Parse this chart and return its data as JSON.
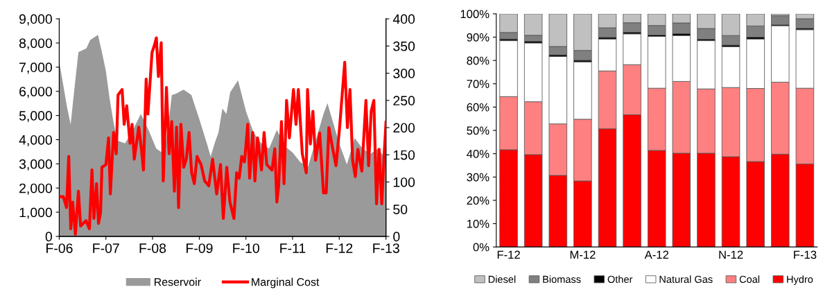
{
  "chart_data": [
    {
      "type": "line",
      "legend": "bottom",
      "grid": false,
      "xlim": [
        "2006-02-01",
        "2013-02-01"
      ],
      "xticks": [
        {
          "value": "2006-02-01",
          "label": "F-06"
        },
        {
          "value": "2007-02-01",
          "label": "F-07"
        },
        {
          "value": "2008-02-01",
          "label": "F-08"
        },
        {
          "value": "2009-02-01",
          "label": "F-09"
        },
        {
          "value": "2010-02-01",
          "label": "F-10"
        },
        {
          "value": "2011-02-01",
          "label": "F-11"
        },
        {
          "value": "2012-02-01",
          "label": "F-12"
        },
        {
          "value": "2013-02-01",
          "label": "F-13"
        }
      ],
      "ylim": [
        0,
        9000
      ],
      "yticks": [
        0,
        {
          "value": 1000,
          "label": "1,000"
        },
        {
          "value": 2000,
          "label": "2,000"
        },
        {
          "value": 3000,
          "label": "3,000"
        },
        {
          "value": 4000,
          "label": "4,000"
        },
        {
          "value": 5000,
          "label": "5,000"
        },
        {
          "value": 6000,
          "label": "6,000"
        },
        {
          "value": 7000,
          "label": "7,000"
        },
        {
          "value": 8000,
          "label": "8,000"
        },
        {
          "value": 9000,
          "label": "9,000"
        }
      ],
      "y2lim": [
        0,
        400
      ],
      "y2ticks": [
        0,
        50,
        100,
        150,
        200,
        250,
        300,
        350,
        400
      ],
      "series": [
        {
          "name": "Reservoir",
          "type": "area",
          "color": "#9a9a9a",
          "x": [
            "2006-02-01",
            "2006-04-01",
            "2006-05-01",
            "2006-06-01",
            "2006-07-01",
            "2006-09-01",
            "2006-10-01",
            "2006-11-01",
            "2006-12-01",
            "2007-01-01",
            "2007-02-01",
            "2007-03-01",
            "2007-04-01",
            "2007-05-01",
            "2007-07-01",
            "2007-09-01",
            "2007-11-01",
            "2008-01-01",
            "2008-03-01",
            "2008-05-01",
            "2008-06-01",
            "2008-07-01",
            "2008-08-01",
            "2008-10-01",
            "2008-12-01",
            "2009-02-01",
            "2009-04-01",
            "2009-05-01",
            "2009-06-01",
            "2009-07-01",
            "2009-08-01",
            "2009-09-01",
            "2009-10-01",
            "2009-12-01",
            "2010-02-01",
            "2010-04-01",
            "2010-06-01",
            "2010-08-01",
            "2010-10-01",
            "2010-12-01",
            "2011-02-01",
            "2011-04-01",
            "2011-06-01",
            "2011-08-01",
            "2011-10-01",
            "2011-11-01",
            "2011-12-01",
            "2012-02-01",
            "2012-04-01",
            "2012-06-01",
            "2012-08-01",
            "2012-10-01",
            "2012-12-01",
            "2013-02-01"
          ],
          "values": [
            7230,
            5400,
            4630,
            6180,
            7620,
            7780,
            8120,
            8230,
            8340,
            7620,
            6840,
            5740,
            4740,
            3960,
            3850,
            4400,
            5070,
            4400,
            3630,
            3410,
            4520,
            5850,
            5900,
            6070,
            5850,
            4850,
            3850,
            3300,
            3850,
            4300,
            5290,
            5070,
            5960,
            6460,
            5180,
            4300,
            3850,
            3630,
            4400,
            3740,
            3470,
            3080,
            2860,
            3960,
            5070,
            5510,
            4960,
            3850,
            2970,
            4070,
            3630,
            3410,
            3630,
            3190
          ]
        },
        {
          "name": "Marginal Cost",
          "type": "line",
          "axis": "y2",
          "color": "#ff0000",
          "x": [
            "2006-02-01",
            "2006-03-05",
            "2006-03-30",
            "2006-04-16",
            "2006-05-02",
            "2006-05-17",
            "2006-06-07",
            "2006-07-01",
            "2006-07-18",
            "2006-08-29",
            "2006-09-25",
            "2006-10-15",
            "2006-10-30",
            "2006-11-20",
            "2006-12-05",
            "2006-12-21",
            "2007-01-01",
            "2007-02-01",
            "2007-02-22",
            "2007-03-08",
            "2007-04-02",
            "2007-04-23",
            "2007-05-07",
            "2007-06-08",
            "2007-06-24",
            "2007-07-14",
            "2007-08-09",
            "2007-08-25",
            "2007-09-11",
            "2007-10-16",
            "2007-11-06",
            "2007-11-22",
            "2007-12-13",
            "2007-12-27",
            "2008-01-28",
            "2008-02-18",
            "2008-03-02",
            "2008-03-18",
            "2008-04-09",
            "2008-04-25",
            "2008-05-20",
            "2008-06-10",
            "2008-06-30",
            "2008-07-21",
            "2008-08-07",
            "2008-08-23",
            "2008-09-10",
            "2008-10-02",
            "2008-10-22",
            "2008-11-13",
            "2008-12-03",
            "2008-12-24",
            "2009-01-14",
            "2009-02-15",
            "2009-03-15",
            "2009-04-16",
            "2009-05-16",
            "2009-06-17",
            "2009-07-17",
            "2009-08-08",
            "2009-09-04",
            "2009-09-29",
            "2009-10-30",
            "2009-11-20",
            "2009-12-10",
            "2009-12-30",
            "2010-01-21",
            "2010-02-15",
            "2010-03-02",
            "2010-03-26",
            "2010-04-12",
            "2010-05-03",
            "2010-06-03",
            "2010-06-23",
            "2010-07-14",
            "2010-08-24",
            "2010-09-15",
            "2010-10-01",
            "2010-10-15",
            "2010-11-06",
            "2010-11-26",
            "2010-12-16",
            "2011-01-07",
            "2011-02-08",
            "2011-02-28",
            "2011-03-18",
            "2011-04-18",
            "2011-05-19",
            "2011-05-29",
            "2011-06-20",
            "2011-07-10",
            "2011-07-31",
            "2011-09-01",
            "2011-10-01",
            "2011-10-22",
            "2011-11-12",
            "2011-12-13",
            "2012-01-07",
            "2012-02-04",
            "2012-02-24",
            "2012-03-15",
            "2012-04-05",
            "2012-04-25",
            "2012-05-16",
            "2012-06-06",
            "2012-06-26",
            "2012-07-27",
            "2012-08-28",
            "2012-09-18",
            "2012-10-08",
            "2012-10-29",
            "2012-11-19",
            "2012-12-09",
            "2012-12-30",
            "2013-01-20",
            "2013-02-01"
          ],
          "values": [
            73,
            73,
            53,
            147,
            14,
            63,
            4,
            83,
            19,
            29,
            14,
            122,
            33,
            97,
            24,
            43,
            127,
            132,
            181,
            78,
            191,
            152,
            260,
            270,
            206,
            240,
            171,
            206,
            142,
            201,
            161,
            122,
            289,
            225,
            338,
            353,
            365,
            294,
            356,
            102,
            274,
            152,
            211,
            83,
            201,
            53,
            206,
            127,
            142,
            191,
            117,
            97,
            147,
            132,
            102,
            93,
            142,
            78,
            132,
            33,
            127,
            63,
            33,
            117,
            107,
            147,
            137,
            206,
            107,
            191,
            102,
            181,
            122,
            191,
            132,
            122,
            161,
            63,
            93,
            211,
            97,
            250,
            181,
            270,
            206,
            270,
            152,
            117,
            270,
            170,
            230,
            140,
            190,
            80,
            80,
            200,
            160,
            130,
            200,
            260,
            320,
            200,
            270,
            140,
            110,
            160,
            120,
            250,
            130,
            230,
            250,
            60,
            160,
            60,
            160,
            210
          ]
        }
      ]
    },
    {
      "type": "bar",
      "stacked": true,
      "legend": "bottom",
      "grid": false,
      "categories": [
        "F-12",
        null,
        null,
        "M-12",
        null,
        null,
        "A-12",
        null,
        null,
        "N-12",
        null,
        null,
        "F-13"
      ],
      "ylim": [
        0,
        100
      ],
      "yticks": [
        {
          "value": 0,
          "label": "0%"
        },
        {
          "value": 10,
          "label": "10%"
        },
        {
          "value": 20,
          "label": "20%"
        },
        {
          "value": 30,
          "label": "30%"
        },
        {
          "value": 40,
          "label": "40%"
        },
        {
          "value": 50,
          "label": "50%"
        },
        {
          "value": 60,
          "label": "60%"
        },
        {
          "value": 70,
          "label": "70%"
        },
        {
          "value": 80,
          "label": "80%"
        },
        {
          "value": 90,
          "label": "90%"
        },
        {
          "value": 100,
          "label": "100%"
        }
      ],
      "series": [
        {
          "name": "Hydro",
          "color": "#ff0000",
          "values": [
            41.7,
            39.6,
            30.7,
            28.3,
            50.7,
            56.7,
            41.4,
            40.2,
            40.2,
            38.7,
            36.6,
            39.8,
            35.6
          ]
        },
        {
          "name": "Coal",
          "color": "#ff8080",
          "values": [
            22.8,
            22.7,
            22.1,
            26.5,
            24.8,
            21.5,
            26.7,
            30.8,
            27.6,
            29.7,
            31.4,
            30.9,
            32.5
          ]
        },
        {
          "name": "Natural Gas",
          "color": "#ffffff",
          "values": [
            24.0,
            25.2,
            28.9,
            24.6,
            13.7,
            13.2,
            22.2,
            19.7,
            20.7,
            17.5,
            21.2,
            24.2,
            25.1
          ]
        },
        {
          "name": "Other",
          "color": "#000000",
          "values": [
            0.7,
            0.7,
            0.7,
            0.7,
            0.7,
            0.7,
            0.6,
            0.8,
            0.6,
            0.7,
            0.8,
            0.4,
            0.6
          ]
        },
        {
          "name": "Biomass",
          "color": "#808080",
          "values": [
            2.8,
            2.6,
            3.6,
            4.2,
            4.1,
            4.1,
            4.1,
            4.6,
            4.6,
            4.1,
            4.8,
            3.9,
            4.1
          ]
        },
        {
          "name": "Diesel",
          "color": "#c0c0c0",
          "values": [
            8.0,
            9.2,
            14.0,
            15.7,
            6.0,
            3.8,
            5.0,
            3.9,
            6.3,
            9.3,
            5.2,
            0.8,
            2.1
          ]
        }
      ]
    }
  ]
}
